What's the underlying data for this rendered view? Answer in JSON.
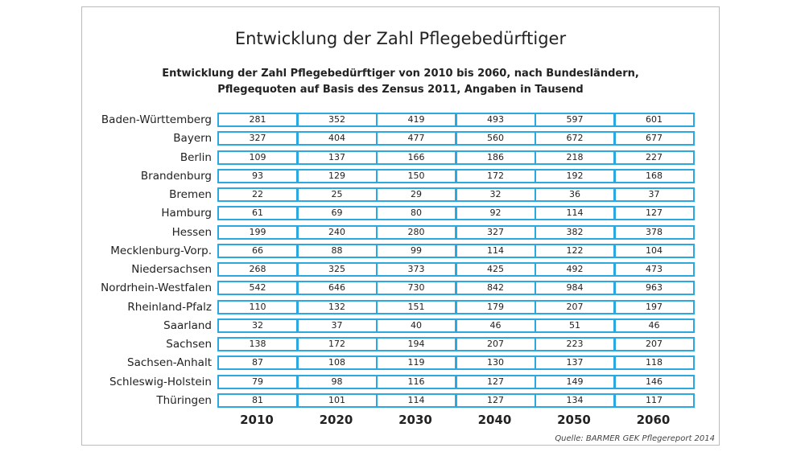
{
  "title": "Entwicklung der Zahl Pflegebedürftiger",
  "subtitle": [
    "Entwicklung der Zahl Pflegebedürftiger von 2010 bis 2060, nach Bundesländern,",
    "Pflegequoten auf Basis des Zensus 2011, Angaben in Tausend"
  ],
  "table": {
    "columns": [
      2010,
      2020,
      2030,
      2040,
      2050,
      2060
    ],
    "rows": [
      {
        "label": "Baden-Württemberg",
        "values": [
          281,
          352,
          419,
          493,
          597,
          601
        ]
      },
      {
        "label": "Bayern",
        "values": [
          327,
          404,
          477,
          560,
          672,
          677
        ]
      },
      {
        "label": "Berlin",
        "values": [
          109,
          137,
          166,
          186,
          218,
          227
        ]
      },
      {
        "label": "Brandenburg",
        "values": [
          93,
          129,
          150,
          172,
          192,
          168
        ]
      },
      {
        "label": "Bremen",
        "values": [
          22,
          25,
          29,
          32,
          36,
          37
        ]
      },
      {
        "label": "Hamburg",
        "values": [
          61,
          69,
          80,
          92,
          114,
          127
        ]
      },
      {
        "label": "Hessen",
        "values": [
          199,
          240,
          280,
          327,
          382,
          378
        ]
      },
      {
        "label": "Mecklenburg-Vorp.",
        "values": [
          66,
          88,
          99,
          114,
          122,
          104
        ]
      },
      {
        "label": "Niedersachsen",
        "values": [
          268,
          325,
          373,
          425,
          492,
          473
        ]
      },
      {
        "label": "Nordrhein-Westfalen",
        "values": [
          542,
          646,
          730,
          842,
          984,
          963
        ]
      },
      {
        "label": "Rheinland-Pfalz",
        "values": [
          110,
          132,
          151,
          179,
          207,
          197
        ]
      },
      {
        "label": "Saarland",
        "values": [
          32,
          37,
          40,
          46,
          51,
          46
        ]
      },
      {
        "label": "Sachsen",
        "values": [
          138,
          172,
          194,
          207,
          223,
          207
        ]
      },
      {
        "label": "Sachsen-Anhalt",
        "values": [
          87,
          108,
          119,
          130,
          137,
          118
        ]
      },
      {
        "label": "Schleswig-Holstein",
        "values": [
          79,
          98,
          116,
          127,
          149,
          146
        ]
      },
      {
        "label": "Thüringen",
        "values": [
          81,
          101,
          114,
          127,
          134,
          117
        ]
      }
    ]
  },
  "source": "Quelle: BARMER GEK Pflegereport 2014"
}
